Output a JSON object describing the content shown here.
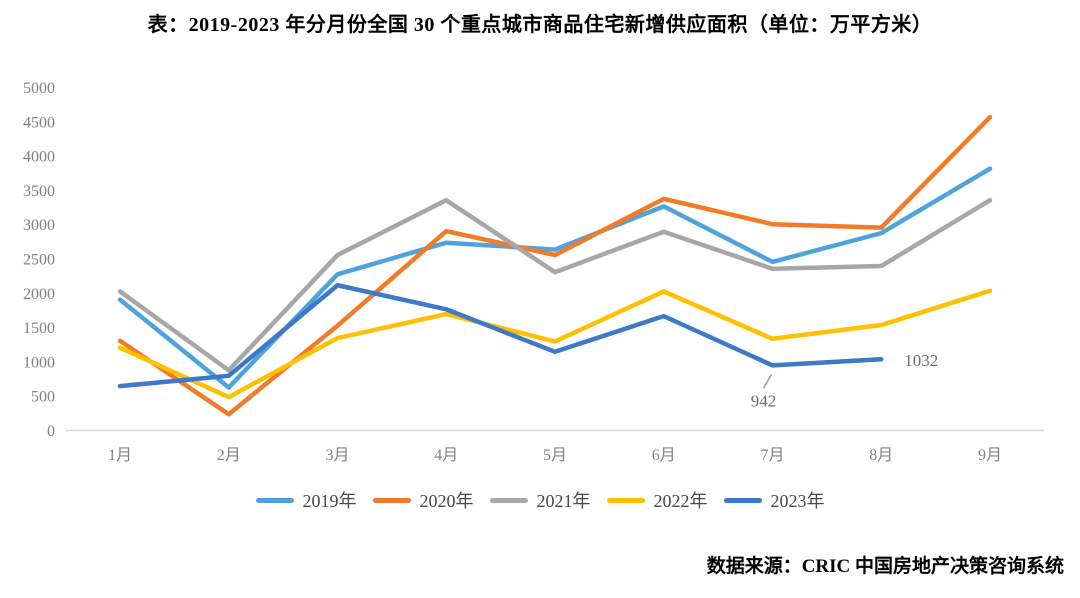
{
  "title": "表：2019-2023 年分月份全国 30 个重点城市商品住宅新增供应面积（单位：万平方米）",
  "source": "数据来源：CRIC 中国房地产决策咨询系统",
  "chart_data": {
    "type": "line",
    "title": "2019-2023 年分月份全国 30 个重点城市商品住宅新增供应面积",
    "unit": "万平方米",
    "categories": [
      "1月",
      "2月",
      "3月",
      "4月",
      "5月",
      "6月",
      "7月",
      "8月",
      "9月"
    ],
    "series": [
      {
        "name": "2019年",
        "color": "#4FA3DC",
        "values": [
          1900,
          620,
          2270,
          2730,
          2630,
          3260,
          2450,
          2870,
          3810
        ]
      },
      {
        "name": "2020年",
        "color": "#F27B2A",
        "values": [
          1300,
          230,
          1520,
          2900,
          2550,
          3370,
          3000,
          2950,
          4560
        ]
      },
      {
        "name": "2021年",
        "color": "#A7A7A7",
        "values": [
          2020,
          870,
          2550,
          3350,
          2300,
          2890,
          2350,
          2390,
          3350
        ]
      },
      {
        "name": "2022年",
        "color": "#FFC000",
        "values": [
          1200,
          480,
          1340,
          1690,
          1290,
          2020,
          1330,
          1530,
          2030
        ]
      },
      {
        "name": "2023年",
        "color": "#3D78C9",
        "values": [
          640,
          790,
          2110,
          1760,
          1140,
          1660,
          942,
          1032,
          null
        ]
      }
    ],
    "ylim": [
      0,
      5000
    ],
    "yticks": [
      0,
      500,
      1000,
      1500,
      2000,
      2500,
      3000,
      3500,
      4000,
      4500,
      5000
    ],
    "grid": false,
    "legend_position": "bottom",
    "annotations": [
      {
        "series": "2023年",
        "category_index": 6,
        "text": "942",
        "placement": "below-left",
        "leader": true
      },
      {
        "series": "2023年",
        "category_index": 7,
        "text": "1032",
        "placement": "right",
        "leader": false
      }
    ]
  }
}
